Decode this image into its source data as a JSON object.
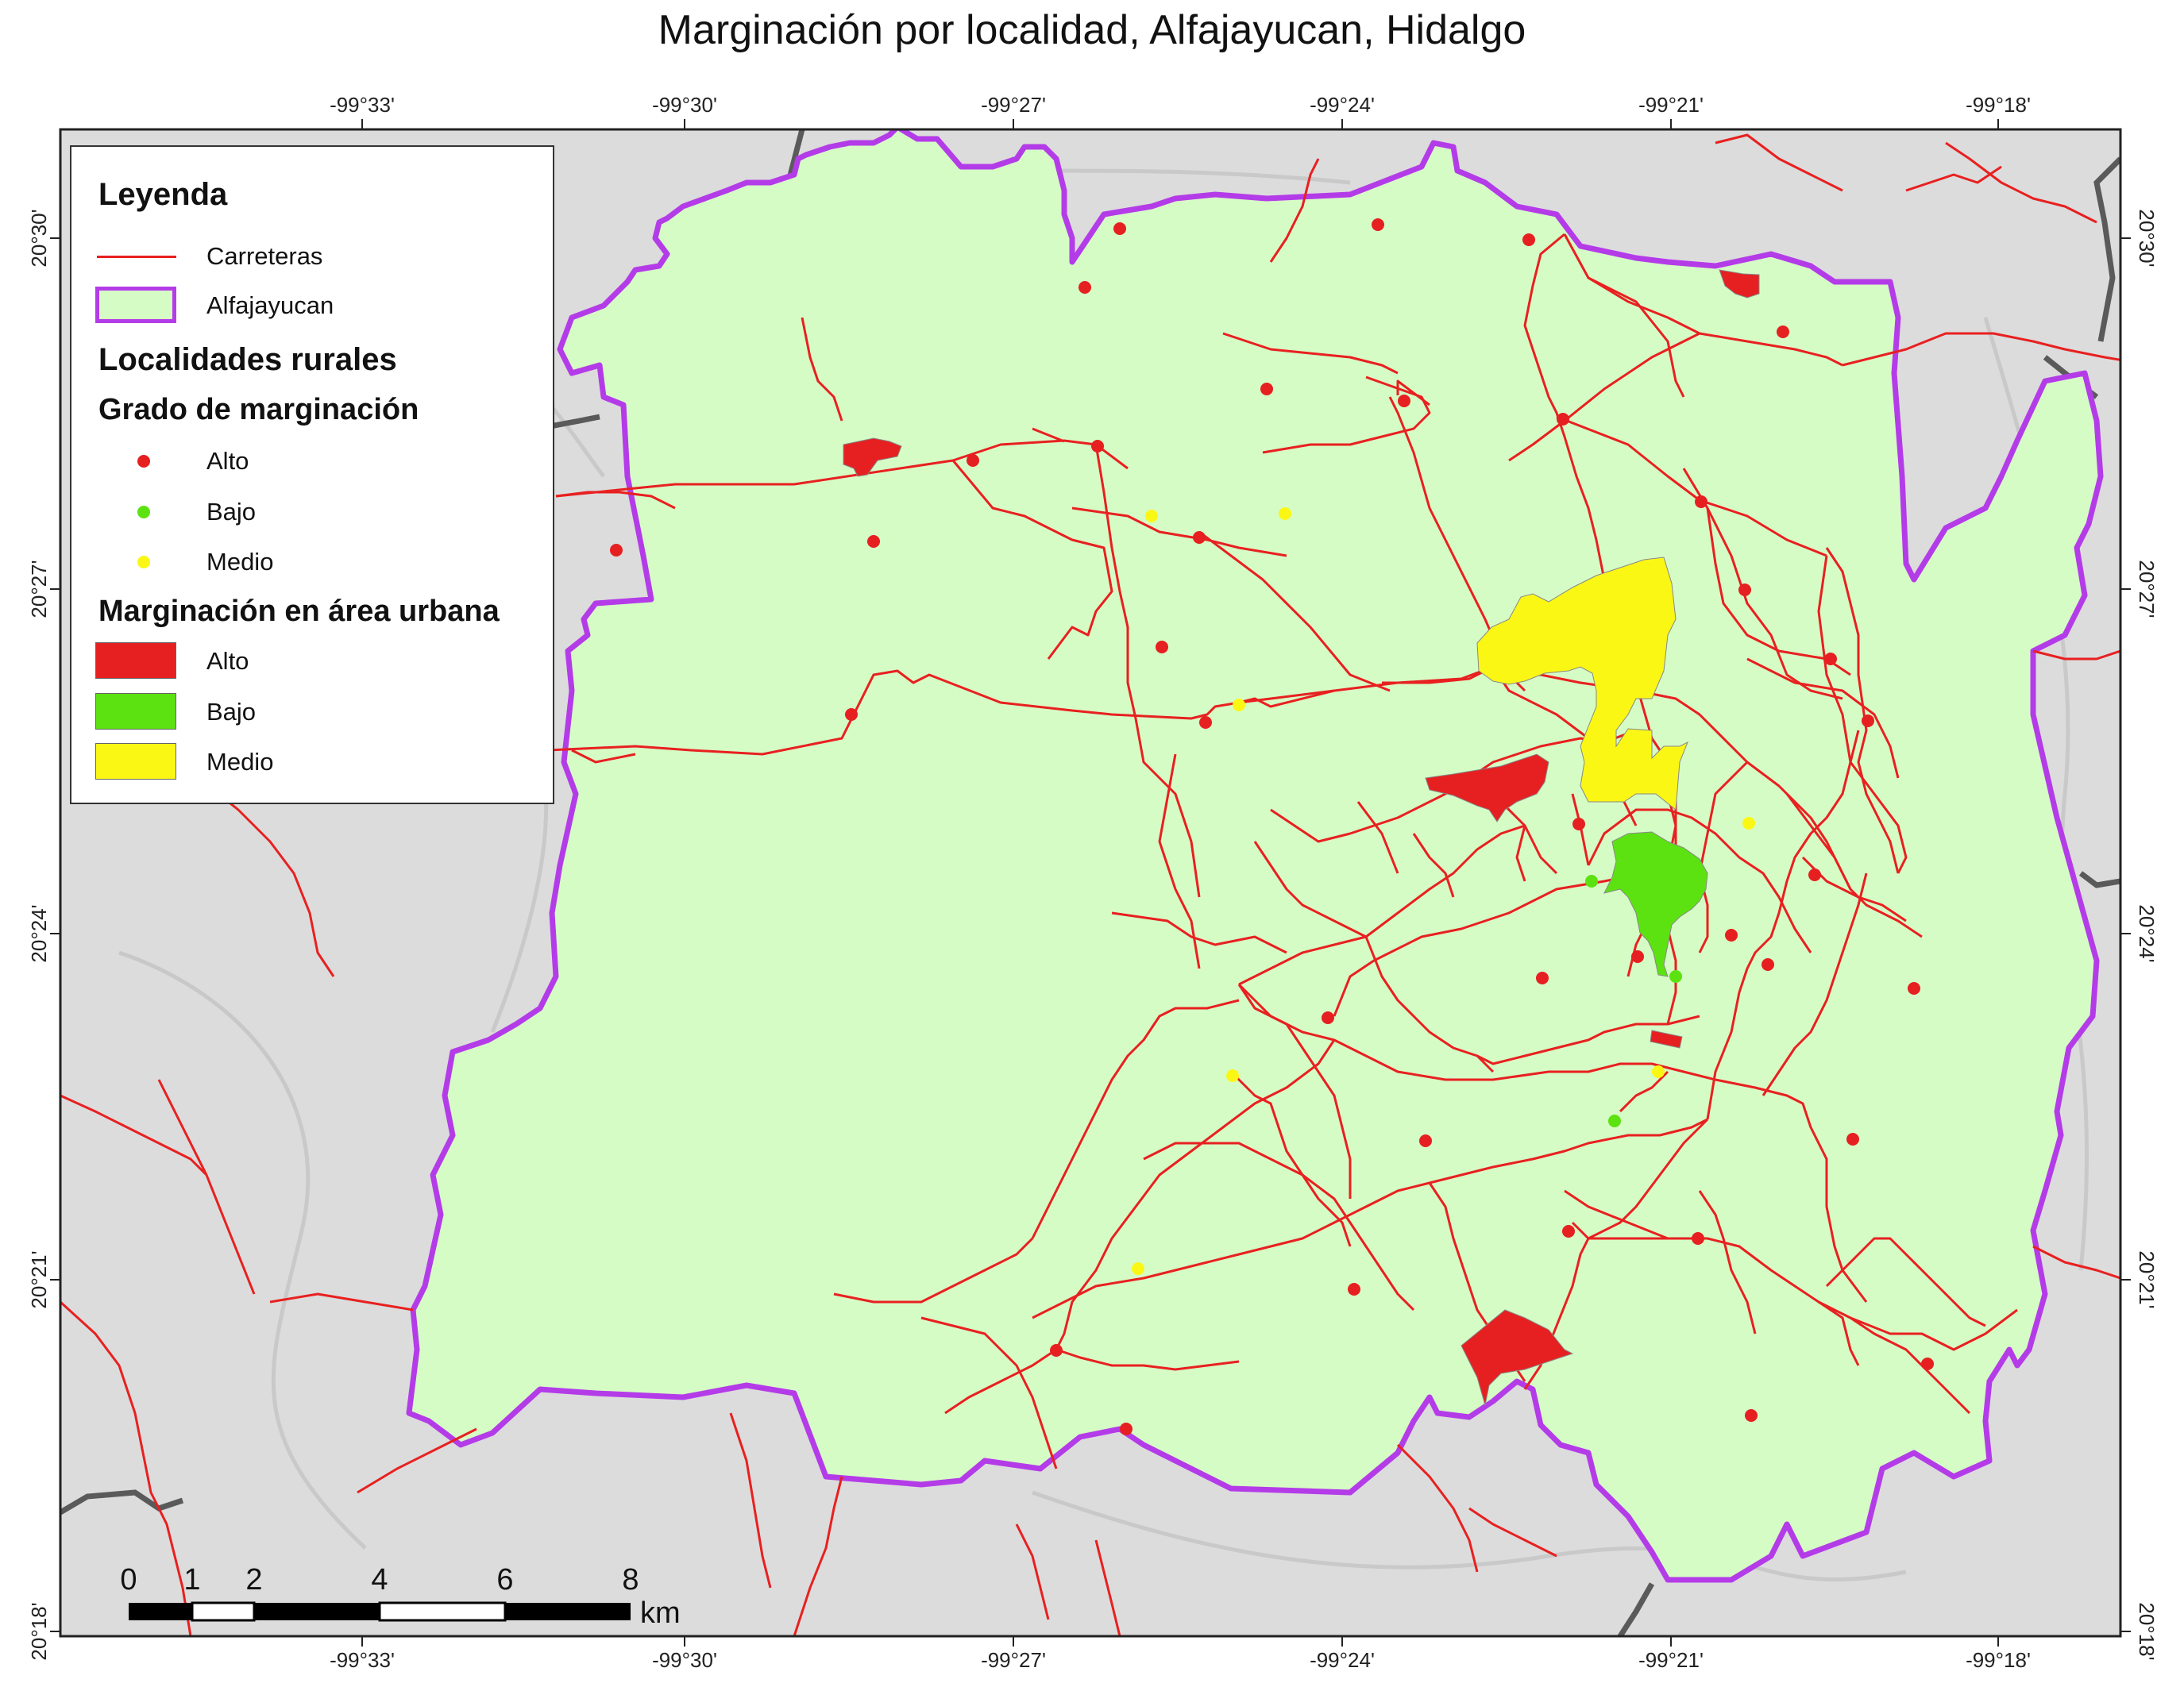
{
  "title": "Marginación por localidad, Alfajayucan, Hidalgo",
  "colors": {
    "roads": "#e82020",
    "boundary": "#b43ce8",
    "municipio_fill": "#d6fcc6",
    "alto": "#e62020",
    "bajo": "#5ce210",
    "medio": "#fbf715",
    "terrain": "#dcdcdc",
    "state_border": "#555555"
  },
  "axes": {
    "lon_labels": [
      "-99°33'",
      "-99°30'",
      "-99°27'",
      "-99°24'",
      "-99°21'",
      "-99°18'"
    ],
    "lat_labels": [
      "20°30'",
      "20°27'",
      "20°24'",
      "20°21'",
      "20°18'"
    ]
  },
  "legend": {
    "title": "Leyenda",
    "roads": "Carreteras",
    "municipio": "Alfajayucan",
    "rural_title": "Localidades rurales",
    "grado_title": "Grado de marginación",
    "rural_items": [
      {
        "label": "Alto",
        "color": "alto"
      },
      {
        "label": "Bajo",
        "color": "bajo"
      },
      {
        "label": "Medio",
        "color": "medio"
      }
    ],
    "urban_title": "Marginación en área urbana",
    "urban_items": [
      {
        "label": "Alto",
        "color": "alto"
      },
      {
        "label": "Bajo",
        "color": "bajo"
      },
      {
        "label": "Medio",
        "color": "medio"
      }
    ]
  },
  "scale_bar": {
    "labels": [
      "0",
      "1",
      "2",
      "4",
      "6",
      "8"
    ],
    "unit": "km"
  }
}
